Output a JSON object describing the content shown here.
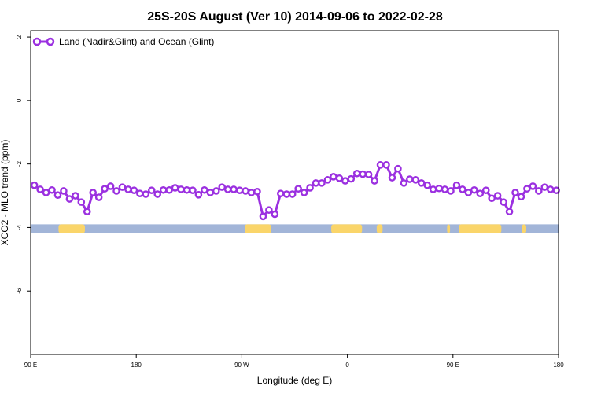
{
  "chart_data": {
    "type": "line",
    "title": "25S-20S August (Ver 10)   2014-09-06 to 2022-02-28",
    "xlabel": "Longitude (deg E)",
    "ylabel": "XCO2 - MLO trend (ppm)",
    "xlim": [
      90,
      450
    ],
    "ylim": [
      -8,
      2.2
    ],
    "x_ticks": [
      {
        "value": 90,
        "label": "90 E"
      },
      {
        "value": 162,
        "label": "180"
      },
      {
        "value": 234,
        "label": "90 W"
      },
      {
        "value": 306,
        "label": "0"
      },
      {
        "value": 378,
        "label": "90 E"
      },
      {
        "value": 450,
        "label": "180"
      }
    ],
    "y_ticks": [
      {
        "value": 2,
        "label": "2"
      },
      {
        "value": 0,
        "label": "0"
      },
      {
        "value": -2,
        "label": "-2"
      },
      {
        "value": -4,
        "label": "-4"
      },
      {
        "value": -6,
        "label": "-6"
      }
    ],
    "grid": false,
    "legend_position": "top-left",
    "series": [
      {
        "name": "Land (Nadir&Glint) and Ocean (Glint)",
        "color": "#9b30e0",
        "x": [
          92.5,
          96.5,
          100.5,
          104.5,
          108.5,
          112.5,
          116.5,
          120.5,
          124.5,
          128.5,
          132.5,
          136.5,
          140.5,
          144.5,
          148.5,
          152.5,
          156.5,
          160.5,
          164.5,
          168.5,
          172.5,
          176.5,
          180.5,
          184.5,
          188.5,
          192.5,
          196.5,
          200.5,
          204.5,
          208.5,
          212.5,
          216.5,
          220.5,
          224.5,
          228.5,
          232.5,
          236.5,
          240.5,
          244.5,
          248.5,
          252.5,
          256.5,
          260.5,
          264.5,
          268.5,
          272.5,
          276.5,
          280.5,
          284.5,
          288.5,
          292.5,
          296.5,
          300.5,
          304.5,
          308.5,
          312.5,
          316.5,
          320.5,
          324.5,
          328.5,
          332.5,
          336.5,
          340.5,
          344.5,
          348.5,
          352.5,
          356.5,
          360.5,
          364.5,
          368.5,
          372.5,
          376.5,
          380.5,
          384.5,
          388.5,
          392.5,
          396.5,
          400.5,
          404.5,
          408.5,
          412.5,
          416.5,
          420.5,
          424.5,
          428.5,
          432.5,
          436.5,
          440.5,
          444.5,
          448.5
        ],
        "values": [
          -2.67,
          -2.8,
          -2.9,
          -2.82,
          -2.98,
          -2.85,
          -3.1,
          -3.0,
          -3.2,
          -3.5,
          -2.9,
          -3.05,
          -2.78,
          -2.7,
          -2.85,
          -2.73,
          -2.8,
          -2.83,
          -2.93,
          -2.95,
          -2.83,
          -2.95,
          -2.82,
          -2.82,
          -2.75,
          -2.8,
          -2.82,
          -2.83,
          -2.97,
          -2.82,
          -2.9,
          -2.85,
          -2.73,
          -2.8,
          -2.8,
          -2.83,
          -2.85,
          -2.9,
          -2.87,
          -3.65,
          -3.45,
          -3.58,
          -2.93,
          -2.95,
          -2.95,
          -2.78,
          -2.9,
          -2.75,
          -2.6,
          -2.6,
          -2.5,
          -2.4,
          -2.45,
          -2.53,
          -2.47,
          -2.3,
          -2.32,
          -2.33,
          -2.53,
          -2.03,
          -2.03,
          -2.43,
          -2.15,
          -2.6,
          -2.48,
          -2.5,
          -2.6,
          -2.67,
          -2.8,
          -2.77,
          -2.8,
          -2.85,
          -2.67,
          -2.8,
          -2.9,
          -2.82,
          -2.93,
          -2.83,
          -3.08,
          -3.0,
          -3.2,
          -3.5,
          -2.9,
          -3.03,
          -2.78,
          -2.7,
          -2.85,
          -2.73,
          -2.8,
          -2.83
        ]
      }
    ],
    "land_ocean_strip": {
      "y_top": -3.9,
      "y_bottom": -4.18,
      "ocean_color": "#a2b5d8",
      "land_color": "#fad56a",
      "land_segments": [
        [
          109,
          127
        ],
        [
          236,
          254
        ],
        [
          295,
          316
        ],
        [
          326,
          330
        ],
        [
          374,
          376
        ],
        [
          382,
          411
        ],
        [
          425,
          428
        ]
      ]
    }
  }
}
